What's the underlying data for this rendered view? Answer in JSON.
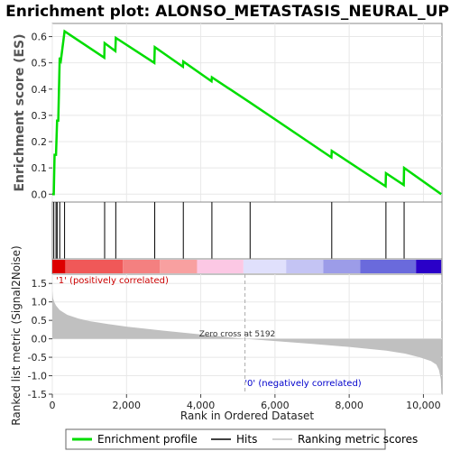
{
  "chart_data": {
    "title": "Enrichment plot: ALONSO_METASTASIS_NEURAL_UP",
    "type": "line",
    "xlabel": "Rank in Ordered Dataset",
    "xlim": [
      0,
      10500
    ],
    "x_ticks": [
      0,
      2000,
      4000,
      6000,
      8000,
      10000
    ],
    "x_tick_labels": [
      "0",
      "2,000",
      "4,000",
      "6,000",
      "8,000",
      "10,000"
    ],
    "top_panel": {
      "ylabel": "Enrichment score (ES)",
      "ylim": [
        -0.03,
        0.65
      ],
      "y_ticks": [
        0.0,
        0.1,
        0.2,
        0.3,
        0.4,
        0.5,
        0.6
      ],
      "y_tick_labels": [
        "0.0",
        "0.1",
        "0.2",
        "0.3",
        "0.4",
        "0.5",
        "0.6"
      ],
      "series": [
        {
          "name": "Enrichment profile",
          "color": "#00dd00",
          "x": [
            0,
            40,
            60,
            100,
            130,
            160,
            200,
            230,
            330,
            1400,
            1410,
            1700,
            1710,
            2750,
            2760,
            3520,
            3530,
            4290,
            4300,
            5320,
            7520,
            7530,
            8980,
            8990,
            9470,
            9480,
            10480
          ],
          "y": [
            0.0,
            0.0,
            0.15,
            0.15,
            0.28,
            0.28,
            0.52,
            0.51,
            0.62,
            0.52,
            0.575,
            0.545,
            0.595,
            0.5,
            0.56,
            0.485,
            0.505,
            0.43,
            0.445,
            0.35,
            0.14,
            0.165,
            0.03,
            0.08,
            0.035,
            0.1,
            0.0
          ]
        }
      ]
    },
    "hits": [
      40,
      100,
      130,
      200,
      330,
      1410,
      1710,
      2760,
      3530,
      4300,
      5330,
      7530,
      8990,
      9480
    ],
    "heatmap_bar": {
      "segments": [
        {
          "from": 0,
          "to": 350,
          "color": "#dd0000"
        },
        {
          "from": 350,
          "to": 1900,
          "color": "#f05858"
        },
        {
          "from": 1900,
          "to": 2900,
          "color": "#f48080"
        },
        {
          "from": 2900,
          "to": 3900,
          "color": "#f8a0a0"
        },
        {
          "from": 3900,
          "to": 5150,
          "color": "#fcc8e4"
        },
        {
          "from": 5150,
          "to": 6300,
          "color": "#e0e0fc"
        },
        {
          "from": 6300,
          "to": 7300,
          "color": "#c4c4f4"
        },
        {
          "from": 7300,
          "to": 8300,
          "color": "#9c9ce8"
        },
        {
          "from": 8300,
          "to": 9800,
          "color": "#6a6adc"
        },
        {
          "from": 9800,
          "to": 10480,
          "color": "#2a00c8"
        }
      ]
    },
    "bottom_panel": {
      "ylabel": "Ranked list metric (Signal2Noise)",
      "ylim": [
        -1.5,
        1.75
      ],
      "y_ticks": [
        -1.5,
        -1.0,
        -0.5,
        0.0,
        0.5,
        1.0,
        1.5
      ],
      "y_tick_labels": [
        "-1.5",
        "-1.0",
        "-0.5",
        "0.0",
        "0.5",
        "1.0",
        "1.5"
      ],
      "fill_color": "#c0c0c0",
      "series": [
        {
          "name": "Ranking metric scores",
          "x": [
            0,
            20,
            50,
            100,
            200,
            400,
            700,
            1000,
            1500,
            2000,
            3000,
            4000,
            5192,
            6000,
            7000,
            8000,
            9000,
            9500,
            9900,
            10200,
            10350,
            10420,
            10470,
            10480
          ],
          "y": [
            1.3,
            1.1,
            1.0,
            0.9,
            0.78,
            0.65,
            0.55,
            0.48,
            0.4,
            0.33,
            0.22,
            0.12,
            0.0,
            -0.06,
            -0.14,
            -0.22,
            -0.32,
            -0.4,
            -0.5,
            -0.6,
            -0.7,
            -0.85,
            -1.1,
            -1.4
          ]
        }
      ],
      "zero_cross": 5192,
      "zero_cross_label": "Zero cross at 5192",
      "pos_label": "'1' (positively correlated)",
      "neg_label": "'0' (negatively correlated)"
    },
    "legend": {
      "items": [
        {
          "label": "Enrichment profile",
          "color": "#00dd00",
          "style": "thick-line"
        },
        {
          "label": "Hits",
          "color": "#000000",
          "style": "line"
        },
        {
          "label": "Ranking metric scores",
          "color": "#c0c0c0",
          "style": "line"
        }
      ]
    }
  }
}
